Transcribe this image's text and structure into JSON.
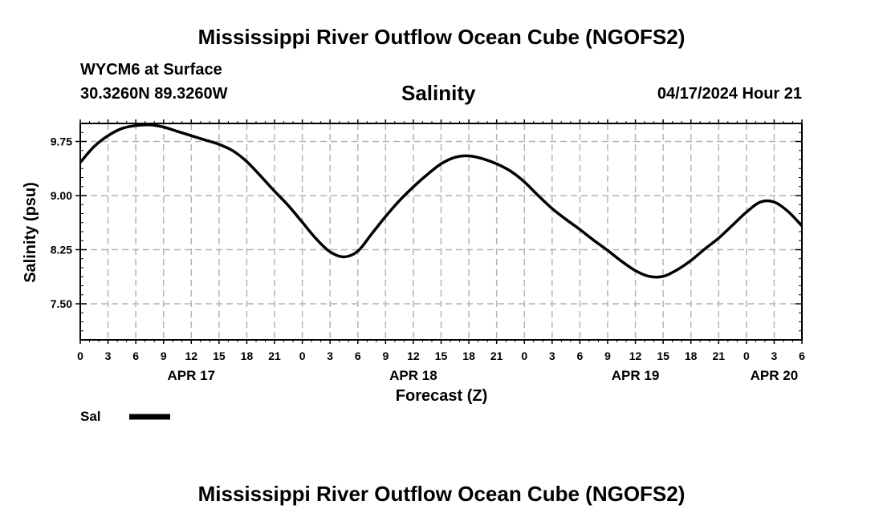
{
  "header": {
    "main_title": "Mississippi River Outflow Ocean Cube (NGOFS2)",
    "station": "WYCM6 at Surface",
    "coords": "30.3260N  89.3260W",
    "variable": "Salinity",
    "timestamp": "04/17/2024 Hour 21"
  },
  "footer": {
    "main_title": "Mississippi River Outflow Ocean Cube (NGOFS2)"
  },
  "legend": {
    "label": "Sal"
  },
  "colors": {
    "line": "#000000",
    "grid": "#b4b4b4",
    "background": "#ffffff"
  },
  "chart_data": {
    "type": "line",
    "title": "Salinity",
    "xlabel": "Forecast (Z)",
    "ylabel": "Salinity (psu)",
    "xlim": [
      0,
      78
    ],
    "ylim": [
      7.0,
      10.0
    ],
    "grid": true,
    "x_ticks": [
      0,
      3,
      6,
      9,
      12,
      15,
      18,
      21,
      24,
      27,
      30,
      33,
      36,
      39,
      42,
      45,
      48,
      51,
      54,
      57,
      60,
      63,
      66,
      69,
      72,
      75,
      78
    ],
    "x_tick_labels": [
      "0",
      "3",
      "6",
      "9",
      "12",
      "15",
      "18",
      "21",
      "0",
      "3",
      "6",
      "9",
      "12",
      "15",
      "18",
      "21",
      "0",
      "3",
      "6",
      "9",
      "12",
      "15",
      "18",
      "21",
      "0",
      "3",
      "6"
    ],
    "y_ticks": [
      7.5,
      8.25,
      9.0,
      9.75
    ],
    "y_tick_labels": [
      "7.50",
      "8.25",
      "9.00",
      "9.75"
    ],
    "date_labels": [
      {
        "x": 12,
        "label": "APR 17"
      },
      {
        "x": 36,
        "label": "APR 18"
      },
      {
        "x": 60,
        "label": "APR 19"
      },
      {
        "x": 75,
        "label": "APR 20"
      }
    ],
    "series": [
      {
        "name": "Sal",
        "x": [
          0,
          1.5,
          3,
          4.5,
          6,
          7.5,
          9,
          10.5,
          12,
          13.5,
          15,
          16.5,
          18,
          19.5,
          21,
          22.5,
          24,
          25.5,
          27,
          28.5,
          30,
          31.5,
          33,
          34.5,
          36,
          37.5,
          39,
          40.5,
          42,
          43.5,
          45,
          46.5,
          48,
          49.5,
          51,
          52.5,
          54,
          55.5,
          57,
          58.5,
          60,
          61.5,
          63,
          64.5,
          66,
          67.5,
          69,
          70.5,
          72,
          73.5,
          75,
          76.5,
          78
        ],
        "values": [
          9.46,
          9.68,
          9.83,
          9.93,
          9.97,
          9.98,
          9.95,
          9.89,
          9.83,
          9.77,
          9.71,
          9.62,
          9.47,
          9.27,
          9.06,
          8.86,
          8.63,
          8.4,
          8.22,
          8.15,
          8.23,
          8.47,
          8.71,
          8.93,
          9.12,
          9.29,
          9.44,
          9.53,
          9.55,
          9.51,
          9.44,
          9.34,
          9.19,
          9.0,
          8.82,
          8.67,
          8.53,
          8.38,
          8.24,
          8.09,
          7.96,
          7.88,
          7.88,
          7.97,
          8.1,
          8.26,
          8.41,
          8.59,
          8.77,
          8.91,
          8.91,
          8.78,
          8.58
        ]
      }
    ]
  }
}
